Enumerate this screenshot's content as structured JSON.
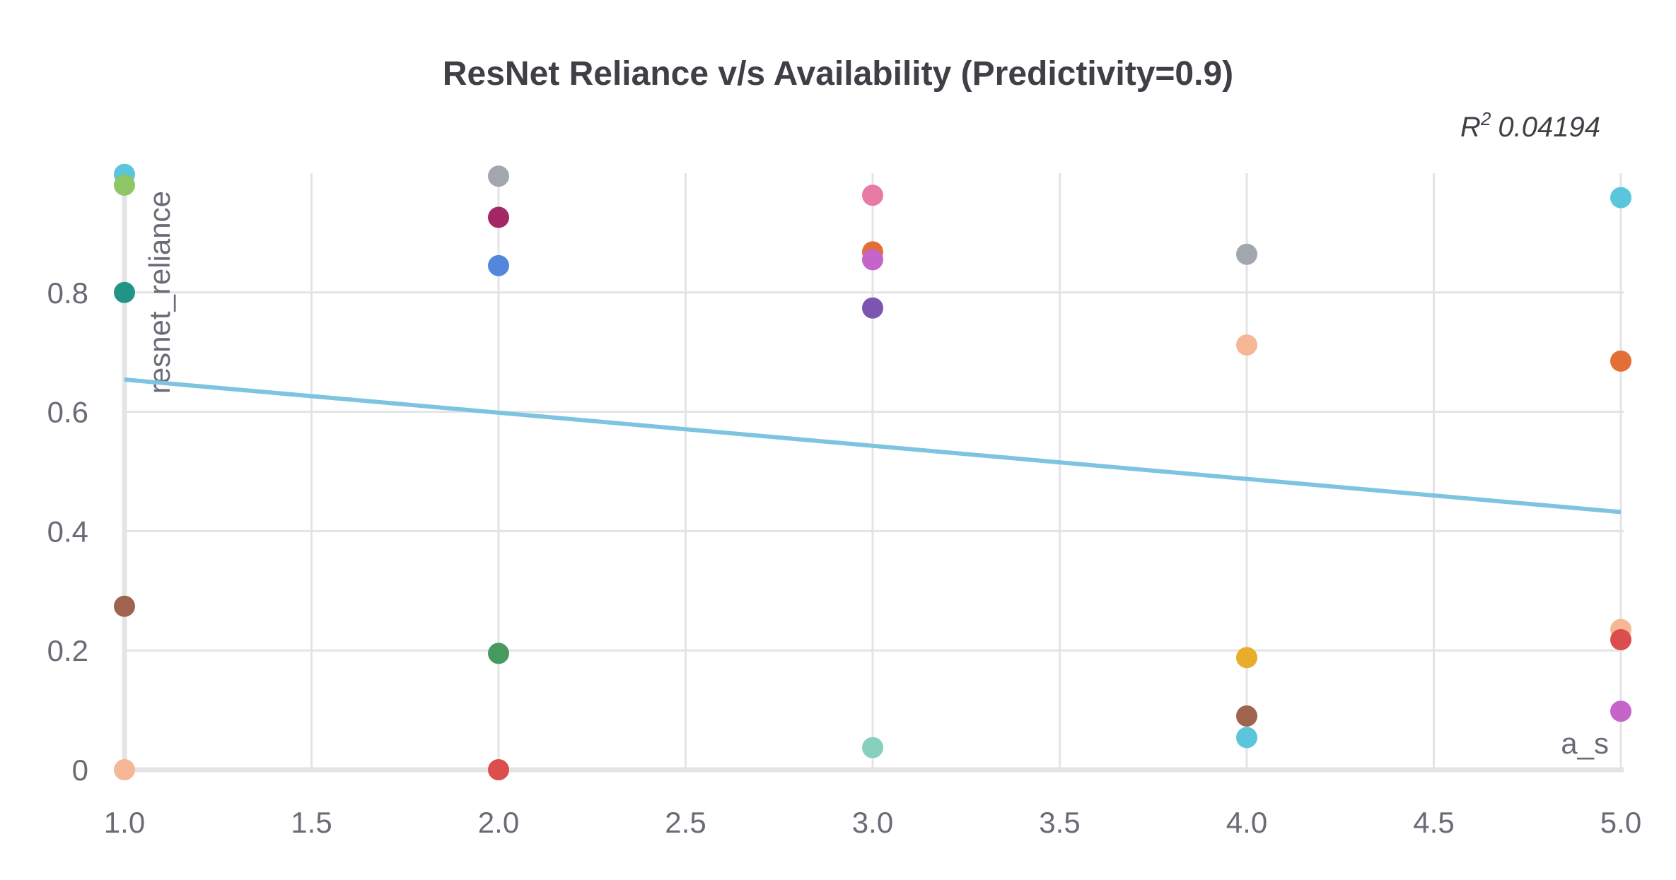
{
  "chart_data": {
    "type": "scatter",
    "title": "ResNet Reliance v/s Availability (Predictivity=0.9)",
    "annotation": {
      "r2_symbol": "R",
      "r2_exp": "2",
      "r2_value": "0.04194"
    },
    "xlabel": "a_s",
    "ylabel": "resnet_reliance",
    "xlim": [
      1.0,
      5.0
    ],
    "ylim": [
      0,
      1.0
    ],
    "x_ticks": [
      1.0,
      1.5,
      2.0,
      2.5,
      3.0,
      3.5,
      4.0,
      4.5,
      5.0
    ],
    "x_tick_labels": [
      "1.0",
      "1.5",
      "2.0",
      "2.5",
      "3.0",
      "3.5",
      "4.0",
      "4.5",
      "5.0"
    ],
    "y_ticks": [
      0,
      0.2,
      0.4,
      0.6,
      0.8
    ],
    "y_tick_labels": [
      "0",
      "0.2",
      "0.4",
      "0.6",
      "0.8"
    ],
    "grid": true,
    "trendline": {
      "x": [
        1.0,
        5.0
      ],
      "y": [
        0.654,
        0.432
      ],
      "color": "#7ec4e0"
    },
    "points": [
      {
        "x": 1.0,
        "y": 0.998,
        "color": "#5bc5dc"
      },
      {
        "x": 1.0,
        "y": 0.98,
        "color": "#8cc665"
      },
      {
        "x": 1.0,
        "y": 0.8,
        "color": "#229487"
      },
      {
        "x": 1.0,
        "y": 0.274,
        "color": "#a0634d"
      },
      {
        "x": 1.0,
        "y": 0.0,
        "color": "#f5b796"
      },
      {
        "x": 2.0,
        "y": 0.995,
        "color": "#a1a7ac"
      },
      {
        "x": 2.0,
        "y": 0.926,
        "color": "#a12864"
      },
      {
        "x": 2.0,
        "y": 0.845,
        "color": "#5387dd"
      },
      {
        "x": 2.0,
        "y": 0.195,
        "color": "#479a5f"
      },
      {
        "x": 2.0,
        "y": 0.0,
        "color": "#dc4d4d"
      },
      {
        "x": 3.0,
        "y": 0.963,
        "color": "#e87ba4"
      },
      {
        "x": 3.0,
        "y": 0.868,
        "color": "#e36f37"
      },
      {
        "x": 3.0,
        "y": 0.855,
        "color": "#c565c9"
      },
      {
        "x": 3.0,
        "y": 0.774,
        "color": "#7d54b2"
      },
      {
        "x": 3.0,
        "y": 0.037,
        "color": "#87d0bd"
      },
      {
        "x": 4.0,
        "y": 0.864,
        "color": "#a1a7ac"
      },
      {
        "x": 4.0,
        "y": 0.712,
        "color": "#f5b796"
      },
      {
        "x": 4.0,
        "y": 0.188,
        "color": "#e8ad2a"
      },
      {
        "x": 4.0,
        "y": 0.09,
        "color": "#a0634d"
      },
      {
        "x": 4.0,
        "y": 0.054,
        "color": "#5bc5dc"
      },
      {
        "x": 5.0,
        "y": 0.959,
        "color": "#5bc5dc"
      },
      {
        "x": 5.0,
        "y": 0.685,
        "color": "#e36f37"
      },
      {
        "x": 5.0,
        "y": 0.235,
        "color": "#f5b796"
      },
      {
        "x": 5.0,
        "y": 0.218,
        "color": "#dc4d4d"
      },
      {
        "x": 5.0,
        "y": 0.098,
        "color": "#c565c9"
      }
    ]
  }
}
